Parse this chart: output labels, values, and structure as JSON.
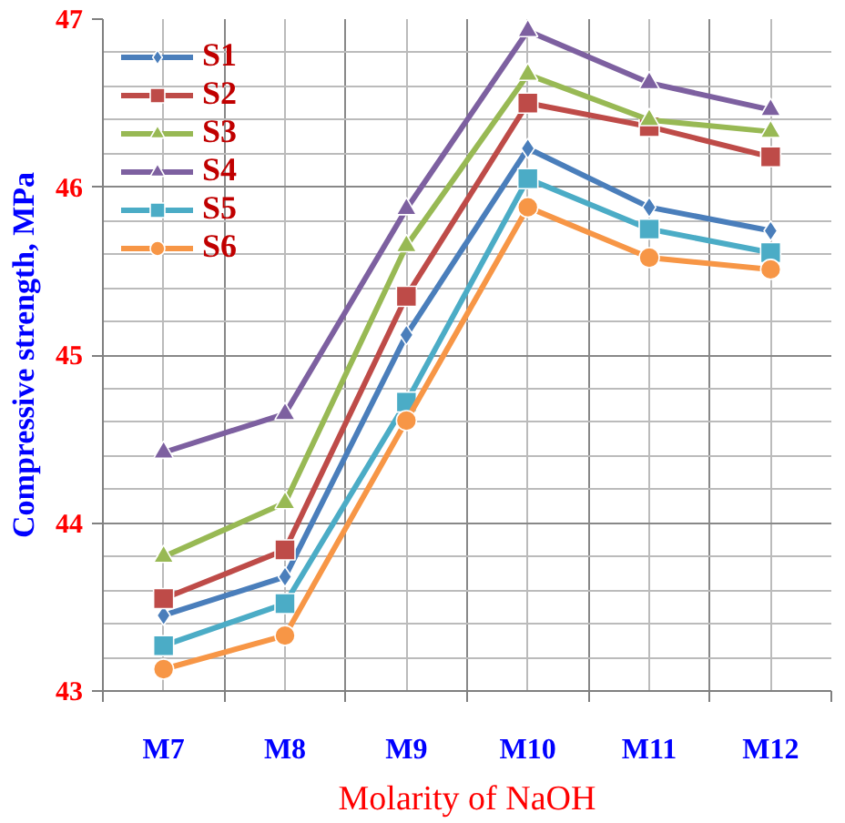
{
  "chart_data": {
    "type": "line",
    "xlabel": "Molarity of NaOH",
    "ylabel": "Compressive strength, MPa",
    "categories": [
      "M7",
      "M8",
      "M9",
      "M10",
      "M11",
      "M12"
    ],
    "ylim": [
      43,
      47
    ],
    "yticks": [
      43,
      44,
      45,
      46,
      47
    ],
    "grid": true,
    "legend": "top left",
    "series": [
      {
        "name": "S1",
        "color": "#4a7ebb",
        "marker": "diamond",
        "values": [
          43.45,
          43.68,
          45.12,
          46.23,
          45.88,
          45.74
        ]
      },
      {
        "name": "S2",
        "color": "#be4b48",
        "marker": "square",
        "values": [
          43.55,
          43.84,
          45.35,
          46.5,
          46.36,
          46.18
        ]
      },
      {
        "name": "S3",
        "color": "#98b954",
        "marker": "triangle",
        "values": [
          43.8,
          44.12,
          45.65,
          46.67,
          46.4,
          46.33
        ]
      },
      {
        "name": "S4",
        "color": "#7d60a0",
        "marker": "triangle",
        "values": [
          44.42,
          44.65,
          45.87,
          46.93,
          46.62,
          46.46
        ]
      },
      {
        "name": "S5",
        "color": "#4bacc6",
        "marker": "square",
        "values": [
          43.27,
          43.52,
          44.72,
          46.05,
          45.75,
          45.61
        ]
      },
      {
        "name": "S6",
        "color": "#f79646",
        "marker": "circle",
        "values": [
          43.13,
          43.33,
          44.61,
          45.88,
          45.58,
          45.51
        ]
      }
    ]
  }
}
